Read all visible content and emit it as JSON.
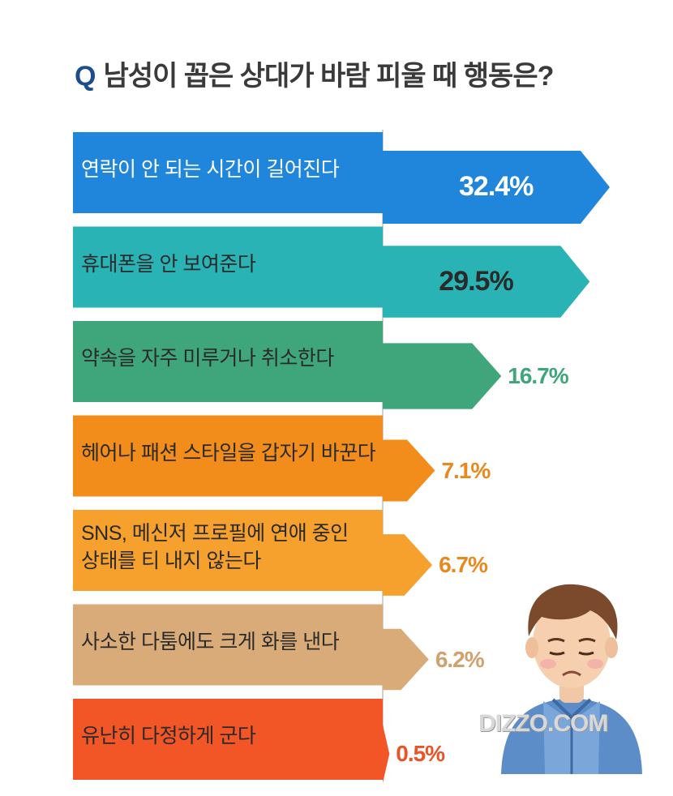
{
  "title": {
    "prefix": "Q",
    "text": "남성이 꼽은 상대가 바람 피울 때 행동은?"
  },
  "watermark": "DIZZO.COM",
  "chart_data": {
    "type": "bar",
    "orientation": "horizontal",
    "title": "Q 남성이 꼽은 상대가 바람 피울 때 행동은?",
    "unit": "%",
    "categories": [
      "연락이 안 되는 시간이 길어진다",
      "휴대폰을 안 보여준다",
      "약속을 자주 미루거나 취소한다",
      "헤어나 패션 스타일을 갑자기 바꾼다",
      "SNS, 메신저 프로필에 연애 중인\n상태를 티 내지 않는다",
      "사소한 다툼에도 크게 화를 낸다",
      "유난히 다정하게 군다"
    ],
    "values": [
      32.4,
      29.5,
      16.7,
      7.1,
      6.7,
      6.2,
      0.5
    ],
    "value_labels": [
      "32.4%",
      "29.5%",
      "16.7%",
      "7.1%",
      "6.7%",
      "6.2%",
      "0.5%"
    ],
    "colors": [
      "#1f86db",
      "#2ab3b4",
      "#3fa57a",
      "#f28c1a",
      "#f6a12d",
      "#d9ab78",
      "#f25526"
    ],
    "label_colors": [
      "#ffffff",
      "#2a2a2a",
      "#2a2a2a",
      "#2a2a2a",
      "#2a2a2a",
      "#2a2a2a",
      "#2a2a2a"
    ],
    "value_colors": [
      "#ffffff",
      "#2a2a2a",
      "#3fa57a",
      "#e9891d",
      "#e9891d",
      "#d1a06c",
      "#ec5226"
    ]
  }
}
